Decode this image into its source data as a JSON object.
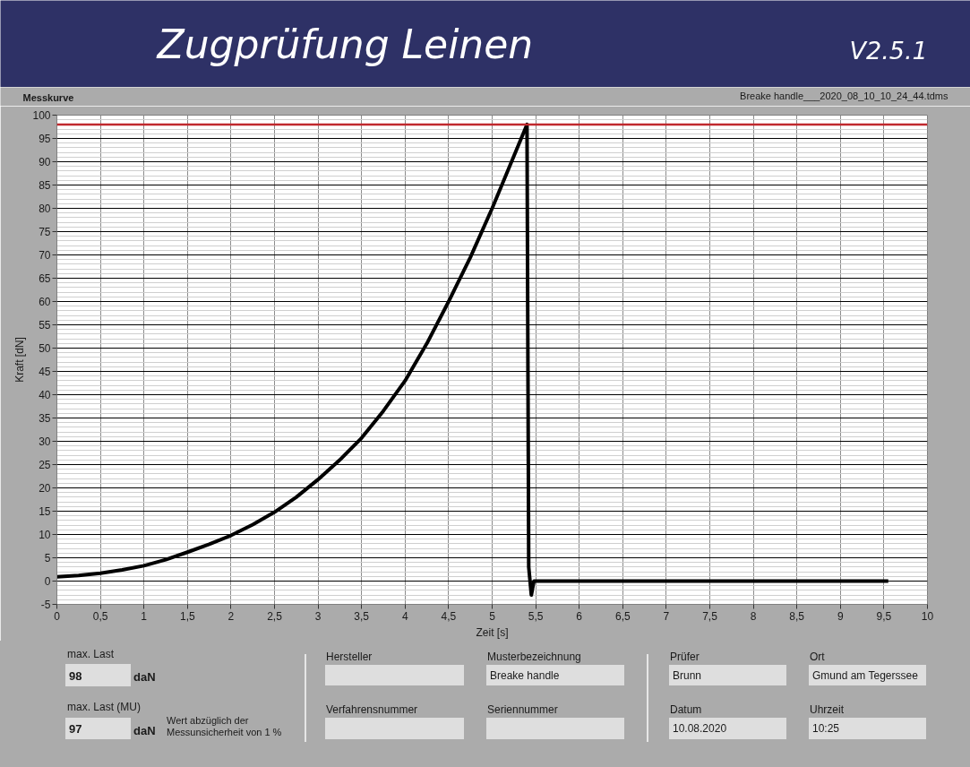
{
  "chart_data": {
    "type": "line",
    "title": "Zugprüfung Leinen",
    "subtitle": "Messkurve",
    "xlabel": "Zeit [s]",
    "ylabel": "Kraft [dN]",
    "x": [
      0,
      0.25,
      0.5,
      0.75,
      1,
      1.25,
      1.5,
      1.75,
      2,
      2.25,
      2.5,
      2.75,
      3,
      3.25,
      3.5,
      3.75,
      4,
      4.25,
      4.5,
      4.75,
      5,
      5.2,
      5.4,
      5.42,
      5.45,
      5.48,
      6,
      6.5,
      7,
      7.5,
      8,
      8.5,
      9,
      9.55
    ],
    "values": [
      0.9,
      1.2,
      1.7,
      2.4,
      3.3,
      4.6,
      6.2,
      7.9,
      9.8,
      12.1,
      14.8,
      18,
      21.8,
      26,
      30.7,
      36.5,
      43,
      51,
      60,
      69.5,
      80,
      89,
      98,
      3,
      -3,
      0,
      0,
      0,
      0,
      0,
      0,
      0,
      0,
      0
    ],
    "color": "#000000",
    "xlim": [
      0,
      10
    ],
    "xticks": [
      0,
      {
        "value": 0.5,
        "label": "0,5"
      },
      1,
      {
        "value": 1.5,
        "label": "1,5"
      },
      2,
      {
        "value": 2.5,
        "label": "2,5"
      },
      3,
      {
        "value": 3.5,
        "label": "3,5"
      },
      4,
      {
        "value": 4.5,
        "label": "4,5"
      },
      5,
      {
        "value": 5.5,
        "label": "5,5"
      },
      6,
      {
        "value": 6.5,
        "label": "6,5"
      },
      7,
      {
        "value": 7.5,
        "label": "7,5"
      },
      8,
      {
        "value": 8.5,
        "label": "8,5"
      },
      9,
      {
        "value": 9.5,
        "label": "9,5"
      },
      10
    ],
    "ylim": [
      -5,
      100
    ],
    "yticks": [
      -5,
      0,
      5,
      10,
      15,
      20,
      25,
      30,
      35,
      40,
      45,
      50,
      55,
      60,
      65,
      70,
      75,
      80,
      85,
      90,
      95,
      100
    ],
    "grid": true,
    "ref_lines": [
      {
        "axis": "y",
        "value": 98,
        "color": "#c0282d"
      }
    ],
    "annotations": [
      "V2.5.1",
      "Breake handle___2020_08_10_10_24_44.tdms",
      "max. Last",
      "98",
      "daN",
      "max. Last (MU)",
      "97",
      "daN",
      "Wert abzüglich der Messunsicherheit von 1 %",
      "Hersteller",
      "Musterbezeichnung",
      "Breake handle",
      "Verfahrensnummer",
      "Seriennummer",
      "Prüfer",
      "Brunn",
      "Ort",
      "Gmund am Tegerssee",
      "Datum",
      "10.08.2020",
      "Uhrzeit",
      "10:25"
    ]
  }
}
